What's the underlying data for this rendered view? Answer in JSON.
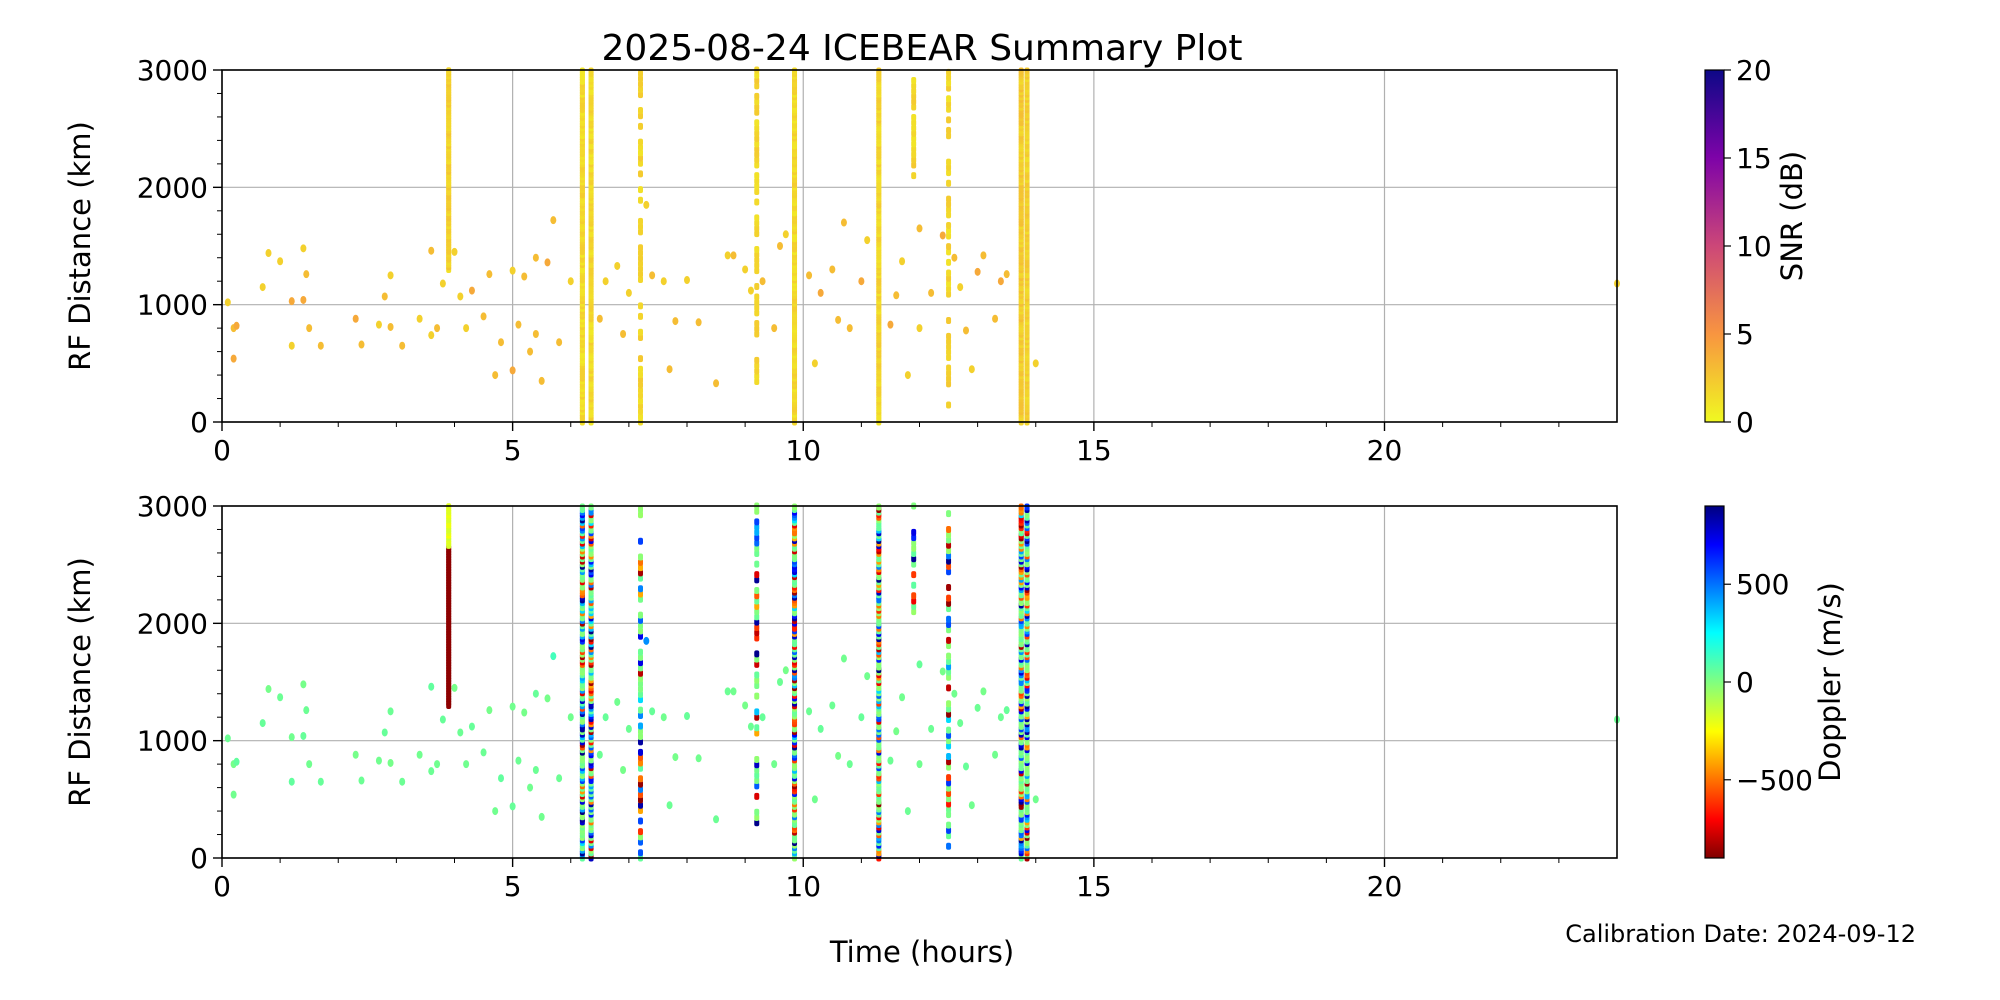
{
  "chart_data": [
    {
      "type": "scatter",
      "title": "2025-08-24 ICEBEAR Summary Plot",
      "xlabel": "",
      "ylabel": "RF Distance (km)",
      "xlim": [
        0,
        24
      ],
      "ylim": [
        0,
        3000
      ],
      "xticks": [
        0,
        5,
        10,
        15,
        20
      ],
      "yticks": [
        0,
        1000,
        2000,
        3000
      ],
      "grid": true,
      "color_by": "snr",
      "colorbar": {
        "label": "SNR (dB)",
        "range": [
          0,
          20
        ],
        "ticks": [
          0,
          5,
          10,
          15,
          20
        ],
        "colormap": "plasma_r"
      }
    },
    {
      "type": "scatter",
      "xlabel": "Time (hours)",
      "ylabel": "RF Distance (km)",
      "xlim": [
        0,
        24
      ],
      "ylim": [
        0,
        3000
      ],
      "xticks": [
        0,
        5,
        10,
        15,
        20
      ],
      "yticks": [
        0,
        1000,
        2000,
        3000
      ],
      "grid": true,
      "color_by": "doppler",
      "colorbar": {
        "label": "Doppler (m/s)",
        "range": [
          -900,
          900
        ],
        "ticks": [
          -500,
          0,
          500
        ],
        "tick_labels": [
          "−500",
          "0",
          "500"
        ],
        "colormap": "jet"
      }
    }
  ],
  "streaks": [
    {
      "hour": 3.9,
      "km": [
        1300,
        3000
      ],
      "snr": 1.2,
      "doppler": "red-lower/yellow-upper"
    },
    {
      "hour": 6.2,
      "km": [
        0,
        3000
      ],
      "snr": 0.8,
      "doppler": "mixed"
    },
    {
      "hour": 6.35,
      "km": [
        0,
        3000
      ],
      "snr": 0.8,
      "doppler": "mixed"
    },
    {
      "hour": 7.2,
      "km": [
        0,
        3000
      ],
      "snr": 1.0,
      "doppler": "mixed-sparse"
    },
    {
      "hour": 9.2,
      "km": [
        300,
        3000
      ],
      "snr": 1.0,
      "doppler": "mixed-sparse"
    },
    {
      "hour": 9.85,
      "km": [
        0,
        3000
      ],
      "snr": 0.8,
      "doppler": "mixed"
    },
    {
      "hour": 11.3,
      "km": [
        0,
        3000
      ],
      "snr": 1.0,
      "doppler": "mixed"
    },
    {
      "hour": 11.9,
      "km": [
        2100,
        3000
      ],
      "snr": 1.0,
      "doppler": "mixed-sparse"
    },
    {
      "hour": 12.5,
      "km": [
        100,
        3000
      ],
      "snr": 1.0,
      "doppler": "mixed-sparse"
    },
    {
      "hour": 13.75,
      "km": [
        0,
        3000
      ],
      "snr": 1.5,
      "doppler": "mixed"
    },
    {
      "hour": 13.85,
      "km": [
        0,
        3000
      ],
      "snr": 1.2,
      "doppler": "mixed"
    }
  ],
  "points": [
    [
      0.1,
      1020,
      2,
      40
    ],
    [
      0.2,
      800,
      3,
      20
    ],
    [
      0.25,
      820,
      4,
      60
    ],
    [
      0.2,
      540,
      4,
      30
    ],
    [
      0.7,
      1150,
      2,
      50
    ],
    [
      0.8,
      1440,
      2,
      20
    ],
    [
      1.0,
      1370,
      2,
      40
    ],
    [
      1.2,
      1030,
      4,
      30
    ],
    [
      1.2,
      650,
      2,
      60
    ],
    [
      1.4,
      1040,
      4,
      50
    ],
    [
      1.4,
      1480,
      2,
      20
    ],
    [
      1.45,
      1260,
      3,
      40
    ],
    [
      1.5,
      800,
      3,
      30
    ],
    [
      1.7,
      650,
      3,
      50
    ],
    [
      2.3,
      880,
      4,
      20
    ],
    [
      2.4,
      660,
      3,
      40
    ],
    [
      2.7,
      830,
      2,
      30
    ],
    [
      2.8,
      1070,
      3,
      50
    ],
    [
      2.9,
      1250,
      2,
      40
    ],
    [
      2.9,
      810,
      3,
      20
    ],
    [
      3.1,
      650,
      3,
      40
    ],
    [
      3.4,
      880,
      2,
      30
    ],
    [
      3.6,
      1460,
      3,
      60
    ],
    [
      3.6,
      740,
      2,
      40
    ],
    [
      3.7,
      800,
      3,
      30
    ],
    [
      3.8,
      1180,
      2,
      50
    ],
    [
      4.0,
      1450,
      2,
      20
    ],
    [
      4.1,
      1070,
      2,
      40
    ],
    [
      4.2,
      800,
      2,
      30
    ],
    [
      4.3,
      1120,
      4,
      50
    ],
    [
      4.5,
      900,
      3,
      40
    ],
    [
      4.6,
      1260,
      3,
      20
    ],
    [
      4.7,
      400,
      3,
      30
    ],
    [
      4.8,
      680,
      3,
      60
    ],
    [
      5.0,
      1290,
      2,
      30
    ],
    [
      5.0,
      440,
      4,
      50
    ],
    [
      5.1,
      830,
      3,
      40
    ],
    [
      5.2,
      1240,
      3,
      20
    ],
    [
      5.3,
      600,
      3,
      30
    ],
    [
      5.4,
      1400,
      3,
      50
    ],
    [
      5.4,
      750,
      3,
      40
    ],
    [
      5.5,
      350,
      3,
      30
    ],
    [
      5.6,
      1360,
      4,
      20
    ],
    [
      5.7,
      1720,
      3,
      120
    ],
    [
      5.8,
      680,
      3,
      40
    ],
    [
      6.0,
      1200,
      2,
      30
    ],
    [
      6.5,
      880,
      3,
      40
    ],
    [
      6.6,
      1200,
      2,
      50
    ],
    [
      6.8,
      1330,
      2,
      30
    ],
    [
      6.9,
      750,
      3,
      20
    ],
    [
      7.0,
      1100,
      2,
      40
    ],
    [
      7.4,
      1250,
      3,
      50
    ],
    [
      7.6,
      1200,
      2,
      30
    ],
    [
      7.7,
      450,
      3,
      40
    ],
    [
      7.8,
      860,
      3,
      20
    ],
    [
      8.0,
      1210,
      2,
      50
    ],
    [
      8.2,
      850,
      3,
      30
    ],
    [
      8.5,
      330,
      3,
      40
    ],
    [
      8.7,
      1420,
      2,
      40
    ],
    [
      8.8,
      1420,
      3,
      30
    ],
    [
      9.0,
      1300,
      2,
      20
    ],
    [
      9.1,
      1120,
      2,
      40
    ],
    [
      9.3,
      1200,
      3,
      50
    ],
    [
      9.5,
      800,
      3,
      30
    ],
    [
      9.6,
      1500,
      3,
      40
    ],
    [
      9.7,
      1600,
      2,
      20
    ],
    [
      10.1,
      1250,
      3,
      40
    ],
    [
      10.2,
      500,
      2,
      30
    ],
    [
      10.3,
      1100,
      4,
      50
    ],
    [
      10.5,
      1300,
      3,
      40
    ],
    [
      10.6,
      870,
      3,
      20
    ],
    [
      10.7,
      1700,
      3,
      30
    ],
    [
      10.8,
      800,
      3,
      40
    ],
    [
      11.0,
      1200,
      4,
      50
    ],
    [
      11.1,
      1550,
      2,
      30
    ],
    [
      11.5,
      830,
      4,
      40
    ],
    [
      11.6,
      1080,
      3,
      20
    ],
    [
      11.7,
      1370,
      2,
      30
    ],
    [
      11.8,
      400,
      2,
      40
    ],
    [
      12.0,
      1650,
      3,
      50
    ],
    [
      12.0,
      800,
      2,
      30
    ],
    [
      12.2,
      1100,
      3,
      40
    ],
    [
      12.4,
      1590,
      4,
      20
    ],
    [
      12.6,
      1400,
      3,
      30
    ],
    [
      12.7,
      1150,
      2,
      40
    ],
    [
      12.8,
      780,
      3,
      50
    ],
    [
      12.9,
      450,
      2,
      30
    ],
    [
      13.0,
      1280,
      4,
      40
    ],
    [
      13.1,
      1420,
      3,
      20
    ],
    [
      13.3,
      880,
      3,
      30
    ],
    [
      13.4,
      1200,
      4,
      40
    ],
    [
      13.5,
      1260,
      3,
      50
    ],
    [
      14.0,
      500,
      2,
      30
    ],
    [
      24.0,
      1180,
      2,
      40
    ],
    [
      7.3,
      1850,
      2,
      450
    ]
  ],
  "footer": {
    "calibration": "Calibration Date: 2024-09-12"
  }
}
